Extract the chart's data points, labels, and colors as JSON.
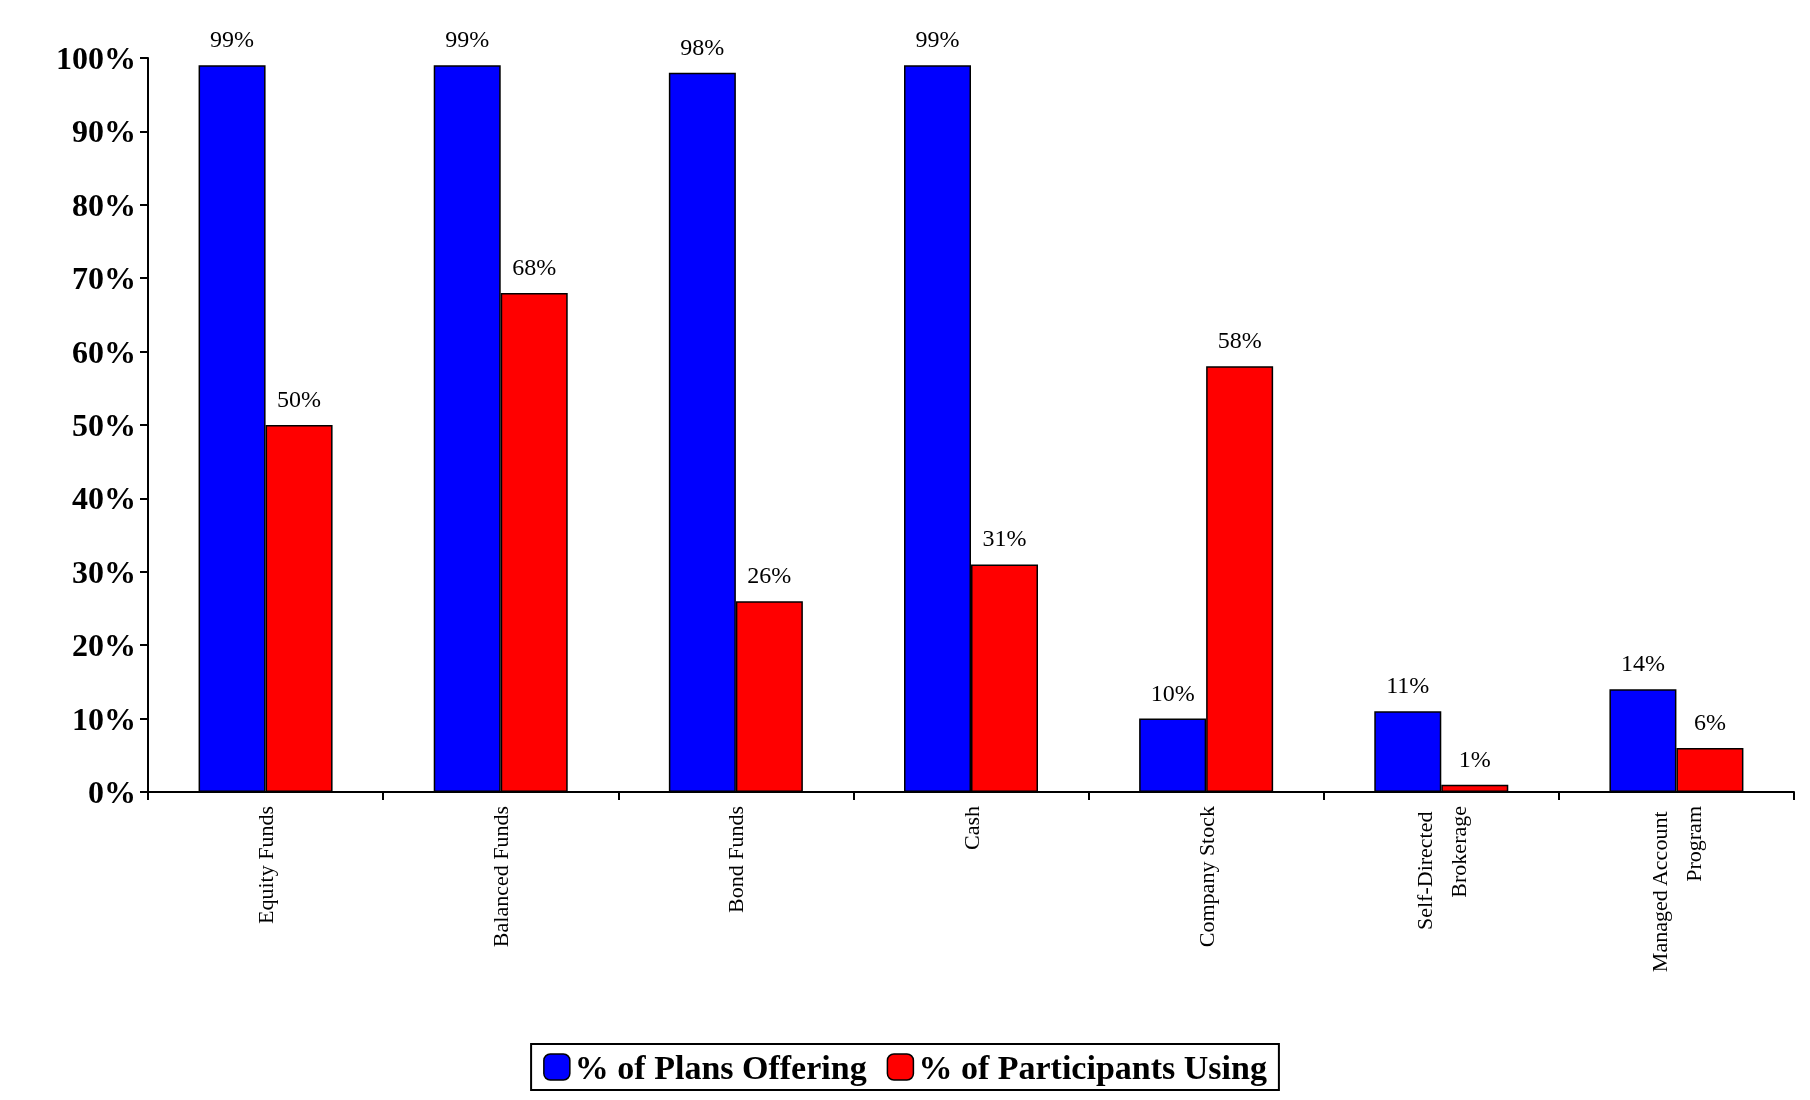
{
  "chart_data": {
    "type": "bar",
    "categories": [
      "Equity Funds",
      "Balanced Funds",
      "Bond Funds",
      "Cash",
      "Company Stock",
      "Self-Directed Brokerage",
      "Managed Account Program"
    ],
    "series": [
      {
        "name": "% of Plans Offering",
        "color": "#0000ff",
        "values": [
          99,
          99,
          98,
          99,
          10,
          11,
          14
        ],
        "value_labels": [
          "99%",
          "99%",
          "98%",
          "99%",
          "10%",
          "11%",
          "14%"
        ]
      },
      {
        "name": "% of Participants Using",
        "color": "#ff0000",
        "values": [
          50,
          68,
          26,
          31,
          58,
          1,
          6
        ],
        "value_labels": [
          "50%",
          "68%",
          "26%",
          "31%",
          "58%",
          "1%",
          "6%"
        ]
      }
    ],
    "ylim": [
      0,
      100
    ],
    "yticks": [
      {
        "value": 0,
        "label": "0%"
      },
      {
        "value": 10,
        "label": "10%"
      },
      {
        "value": 20,
        "label": "20%"
      },
      {
        "value": 30,
        "label": "30%"
      },
      {
        "value": 40,
        "label": "40%"
      },
      {
        "value": 50,
        "label": "50%"
      },
      {
        "value": 60,
        "label": "60%"
      },
      {
        "value": 70,
        "label": "70%"
      },
      {
        "value": 80,
        "label": "80%"
      },
      {
        "value": 90,
        "label": "90%"
      },
      {
        "value": 100,
        "label": "100%"
      }
    ],
    "grid": false,
    "legend": "bottom"
  }
}
